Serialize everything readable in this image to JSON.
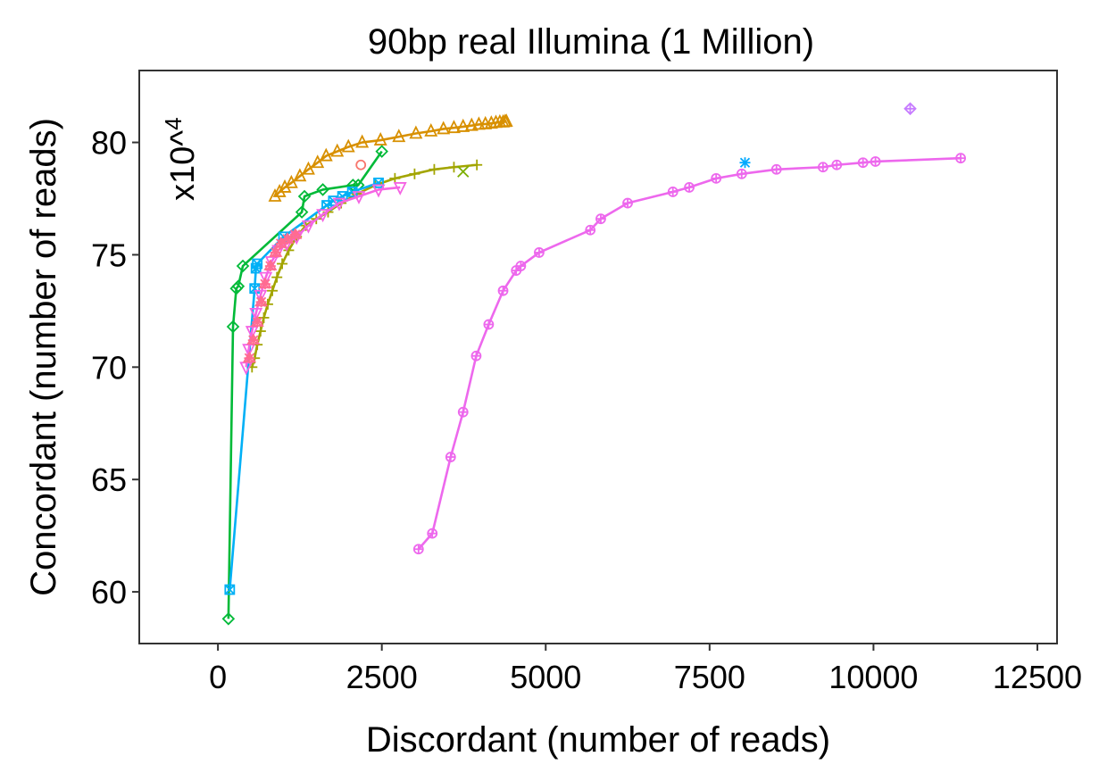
{
  "chart_data": {
    "type": "scatter",
    "title": "90bp real Illumina (1 Million)",
    "xlabel": "Discordant (number of reads)",
    "ylabel": "Concordant (number of reads)",
    "y_multiplier": "x10^4",
    "xlim": [
      -1200,
      12800
    ],
    "ylim": [
      57.7,
      83.2
    ],
    "xticks": [
      0,
      2500,
      5000,
      7500,
      10000,
      12500
    ],
    "xtick_labels": [
      "0",
      "2500",
      "5000",
      "7500",
      "10000",
      "12500"
    ],
    "yticks": [
      60,
      65,
      70,
      75,
      80
    ],
    "ytick_labels": [
      "60",
      "65",
      "70",
      "75",
      "80"
    ],
    "grid": false,
    "legend": "none",
    "series": [
      {
        "color": "#D89000",
        "marker": "triangle",
        "line": true,
        "x": [
          870,
          940,
          1020,
          1120,
          1250,
          1380,
          1520,
          1650,
          1820,
          1990,
          2200,
          2480,
          2760,
          3020,
          3250,
          3440,
          3600,
          3740,
          3870,
          3980,
          4080,
          4170,
          4240,
          4300,
          4350,
          4380,
          4400
        ],
        "y": [
          77.6,
          77.8,
          78.0,
          78.2,
          78.5,
          78.8,
          79.1,
          79.4,
          79.6,
          79.8,
          80.0,
          80.1,
          80.25,
          80.4,
          80.5,
          80.6,
          80.65,
          80.7,
          80.75,
          80.8,
          80.82,
          80.85,
          80.88,
          80.9,
          80.9,
          80.92,
          80.93
        ]
      },
      {
        "color": "#A3A500",
        "marker": "plus",
        "line": true,
        "x": [
          520,
          560,
          600,
          650,
          700,
          760,
          830,
          900,
          980,
          1080,
          1200,
          1340,
          1500,
          1680,
          1880,
          2120,
          2400,
          2700,
          3000,
          3300,
          3600,
          3950
        ],
        "y": [
          70.0,
          70.4,
          71.0,
          71.6,
          72.2,
          72.8,
          73.4,
          74.0,
          74.6,
          75.2,
          75.8,
          76.3,
          76.6,
          76.9,
          77.3,
          77.7,
          78.1,
          78.4,
          78.6,
          78.8,
          78.9,
          79.0
        ]
      },
      {
        "color": "#00BA38",
        "marker": "diamond",
        "line": true,
        "x": [
          160,
          230,
          280,
          310,
          380,
          1280,
          1320,
          1600,
          2060,
          2140,
          2500
        ],
        "y": [
          58.8,
          71.8,
          73.5,
          73.6,
          74.5,
          76.9,
          77.6,
          77.9,
          78.1,
          78.1,
          79.6
        ]
      },
      {
        "color": "#00B0F6",
        "marker": "square-x",
        "line": true,
        "x": [
          180,
          560,
          580,
          600,
          1000,
          1660,
          1760,
          1900,
          2050,
          2450
        ],
        "y": [
          60.1,
          73.5,
          74.4,
          74.6,
          75.8,
          77.2,
          77.4,
          77.6,
          77.8,
          78.2
        ]
      },
      {
        "color": "#F564E3",
        "marker": "triangle-down",
        "line": true,
        "x": [
          430,
          470,
          520,
          580,
          650,
          730,
          820,
          920,
          1050,
          1200,
          1380,
          1600,
          1850,
          2150,
          2450,
          2780
        ],
        "y": [
          70.0,
          70.8,
          71.6,
          72.4,
          73.2,
          74.0,
          74.7,
          75.2,
          75.5,
          75.8,
          76.3,
          76.8,
          77.3,
          77.6,
          77.9,
          78.0
        ]
      },
      {
        "color": "#FF6C91",
        "marker": "star",
        "line": false,
        "x": [
          480,
          540,
          600,
          660,
          720,
          800,
          880,
          960,
          1060,
          1180
        ],
        "y": [
          70.4,
          71.2,
          72.0,
          72.9,
          73.7,
          74.5,
          75.1,
          75.5,
          75.7,
          75.9
        ]
      },
      {
        "color": "#F8766D",
        "marker": "circle",
        "line": false,
        "x": [
          2180
        ],
        "y": [
          79.0
        ]
      },
      {
        "color": "#7CAE00",
        "marker": "x",
        "line": false,
        "x": [
          3740
        ],
        "y": [
          78.7
        ]
      },
      {
        "color": "#ED68ED",
        "marker": "circle-plus",
        "line": true,
        "x": [
          3060,
          3270,
          3550,
          3740,
          3940,
          4130,
          4350,
          4550,
          4620,
          4900,
          5680,
          5840,
          6250,
          6940,
          7190,
          7600,
          7990,
          8520,
          9230,
          9440,
          9840,
          10030,
          11330
        ],
        "y": [
          61.9,
          62.6,
          66.0,
          68.0,
          70.5,
          71.9,
          73.4,
          74.3,
          74.5,
          75.1,
          76.1,
          76.6,
          77.3,
          77.8,
          78.0,
          78.4,
          78.6,
          78.8,
          78.9,
          79.0,
          79.1,
          79.15,
          79.3
        ]
      },
      {
        "color": "#00A9FF",
        "marker": "asterisk",
        "line": false,
        "x": [
          8040
        ],
        "y": [
          79.1
        ]
      },
      {
        "color": "#C77CFF",
        "marker": "diamond-plus",
        "line": false,
        "x": [
          10560
        ],
        "y": [
          81.5
        ]
      }
    ]
  }
}
